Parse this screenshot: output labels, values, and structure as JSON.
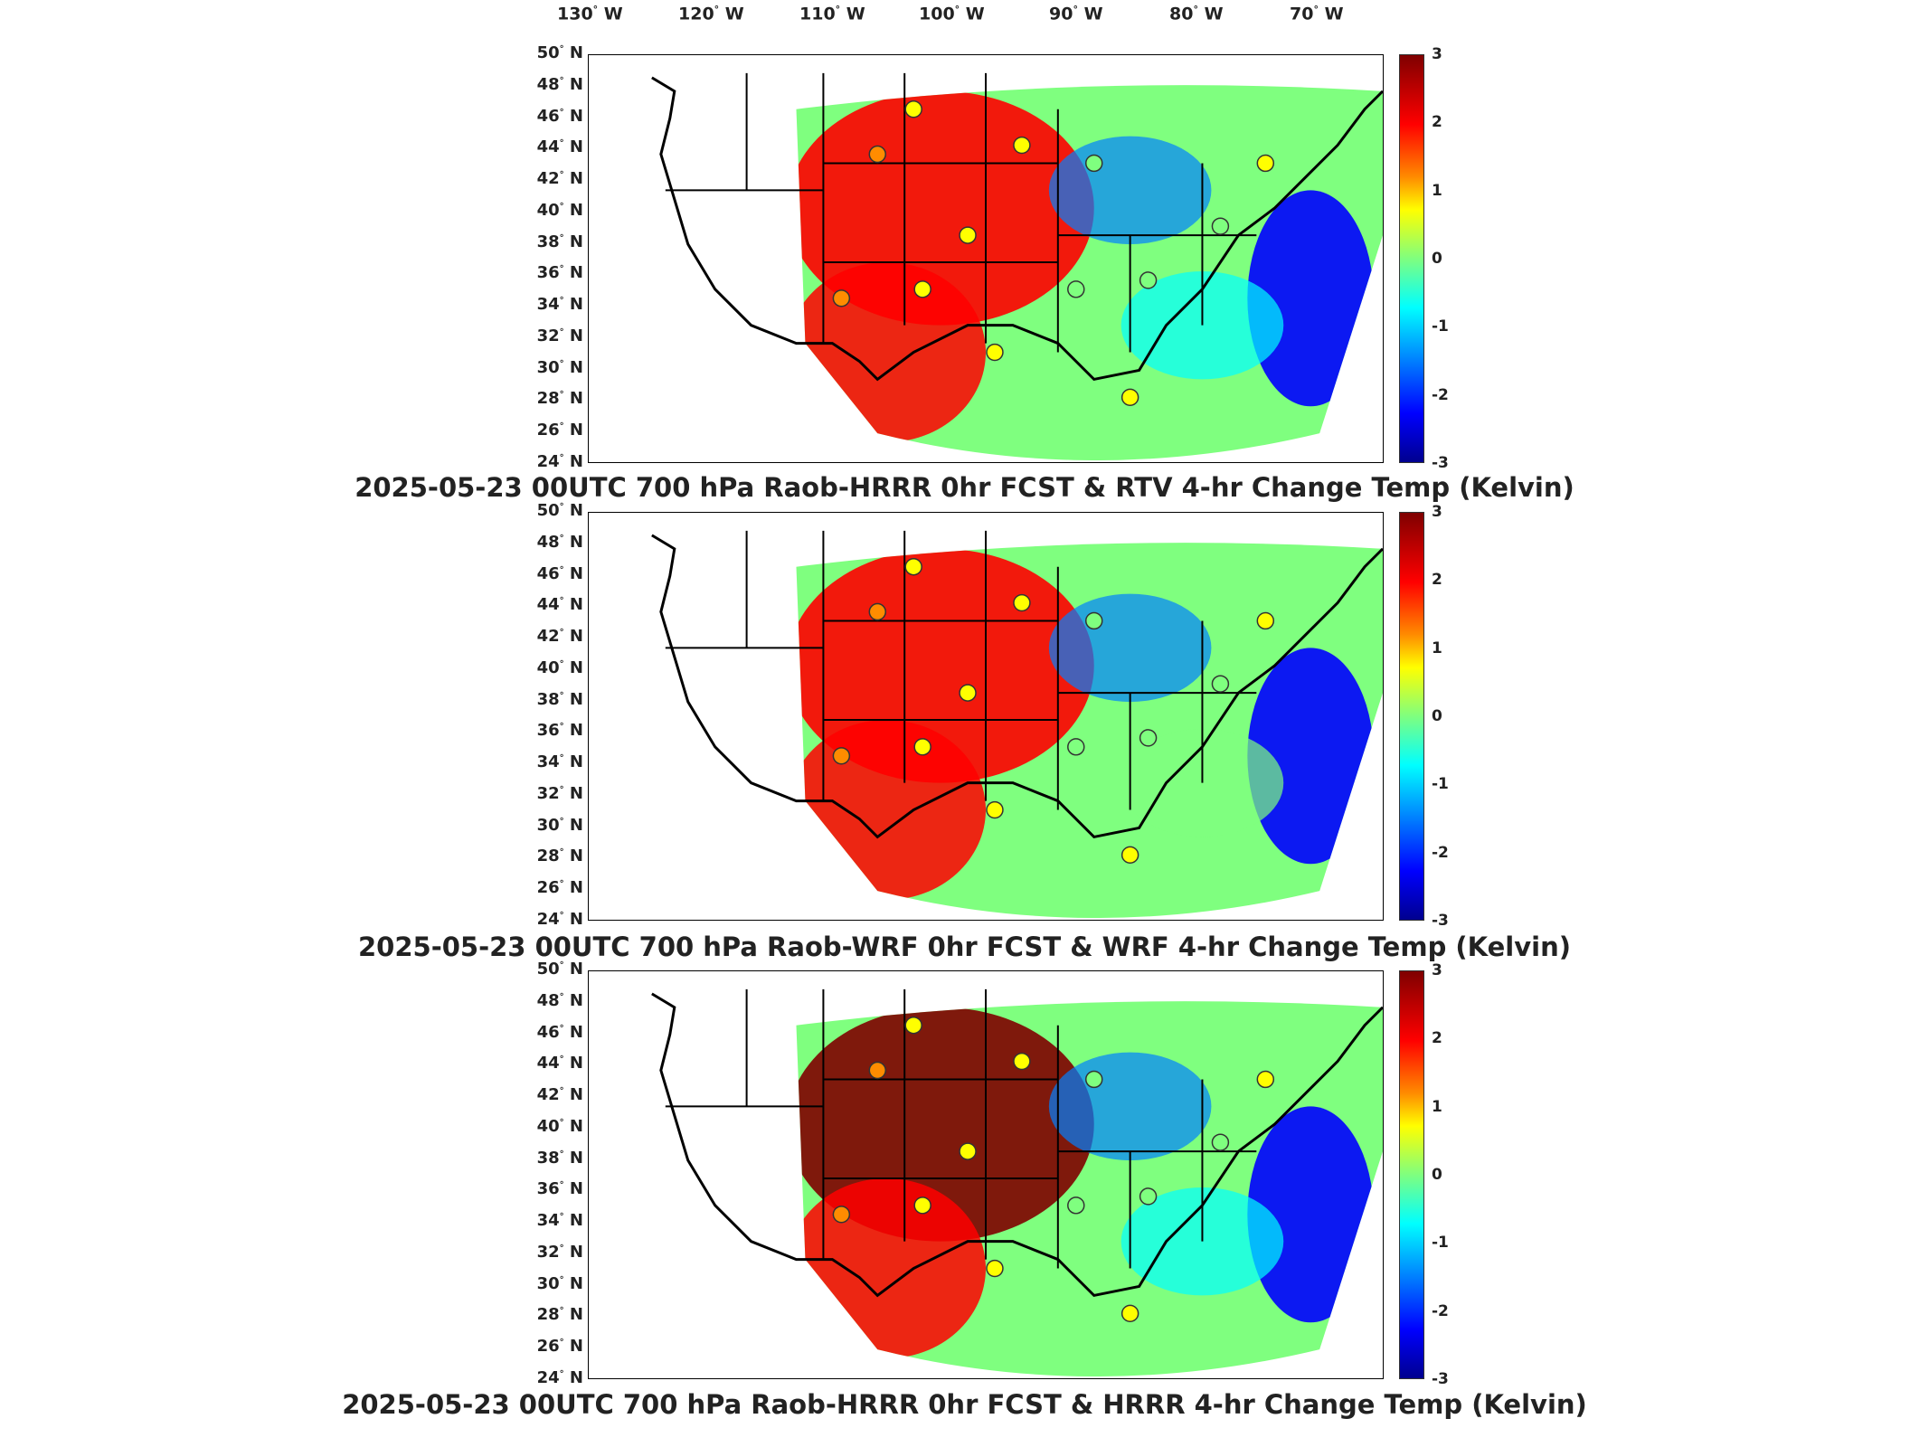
{
  "longitude_labels": [
    "130",
    "120",
    "110",
    "100",
    "90",
    "80",
    "70"
  ],
  "longitude_suffix": "W",
  "latitude_labels": [
    "50",
    "48",
    "46",
    "44",
    "42",
    "40",
    "38",
    "36",
    "34",
    "32",
    "30",
    "28",
    "26",
    "24"
  ],
  "latitude_suffix": "N",
  "colorbar": {
    "ticks": [
      "3",
      "2",
      "1",
      "0",
      "-1",
      "-2",
      "-3"
    ],
    "range": [
      -3,
      3
    ],
    "colors": [
      "#7f0000",
      "#ff0000",
      "#ff8c00",
      "#ffff00",
      "#7fff7f",
      "#00ffff",
      "#0080ff",
      "#0000ff",
      "#00008f"
    ]
  },
  "panels": [
    {
      "title": "2025-05-23 00UTC 700 hPa Raob-HRRR 0hr FCST & RTV 4-hr Change Temp (Kelvin)",
      "regions": [
        {
          "name": "northern-plains-warm",
          "value": 2.5
        },
        {
          "name": "southeast-coast-cool",
          "value": -2.2
        },
        {
          "name": "great-lakes-cool",
          "value": -1.5
        },
        {
          "name": "mid-atlantic-neutral",
          "value": -0.5
        }
      ]
    },
    {
      "title": "2025-05-23 00UTC 700 hPa Raob-WRF 0hr FCST & WRF 4-hr Change Temp (Kelvin)",
      "regions": [
        {
          "name": "northern-plains-warm",
          "value": 2.6
        },
        {
          "name": "southeast-coast-cool",
          "value": -2.5
        },
        {
          "name": "great-lakes-cool",
          "value": -1.2
        },
        {
          "name": "mid-atlantic-neutral",
          "value": -0.3
        }
      ]
    },
    {
      "title": "2025-05-23 00UTC 700 hPa Raob-HRRR 0hr FCST & HRRR 4-hr Change Temp (Kelvin)",
      "regions": [
        {
          "name": "northern-plains-warm",
          "value": 2.7
        },
        {
          "name": "southeast-coast-cool",
          "value": -2.4
        },
        {
          "name": "great-lakes-cool",
          "value": -1.4
        },
        {
          "name": "mid-atlantic-neutral",
          "value": -0.4
        }
      ]
    }
  ]
}
